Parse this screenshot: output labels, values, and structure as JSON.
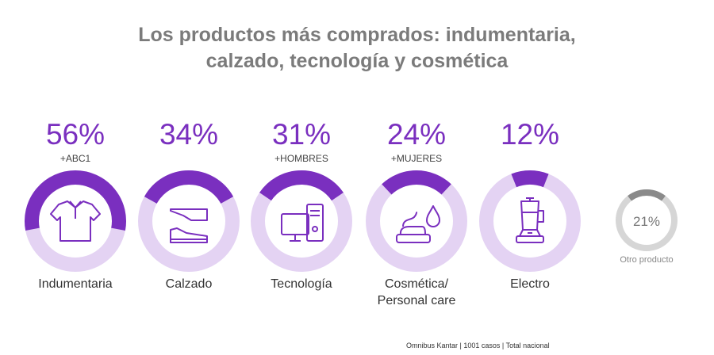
{
  "title": {
    "line1": "Los productos más comprados: indumentaria,",
    "line2": "calzado, tecnología y cosmética"
  },
  "colors": {
    "accent": "#7a2fbf",
    "track": "#e4d3f3",
    "other_accent": "#8a8a8a",
    "other_track": "#d6d6d6"
  },
  "chart_data": {
    "type": "donut",
    "categories": [
      "Indumentaria",
      "Calzado",
      "Tecnología",
      "Cosmética/ Personal care",
      "Electro",
      "Otro producto"
    ],
    "values": [
      56,
      34,
      31,
      24,
      12,
      21
    ],
    "unit": "%"
  },
  "items": [
    {
      "pct": "56%",
      "value": 56,
      "sub": "+ABC1",
      "label": "Indumentaria",
      "icon": "shirt-icon"
    },
    {
      "pct": "34%",
      "value": 34,
      "sub": "",
      "label": "Calzado",
      "icon": "shoes-icon"
    },
    {
      "pct": "31%",
      "value": 31,
      "sub": "+HOMBRES",
      "label": "Tecnología",
      "icon": "computer-icon"
    },
    {
      "pct": "24%",
      "value": 24,
      "sub": "+MUJERES",
      "label": "Cosmética/",
      "label2": "Personal care",
      "icon": "cream-drop-icon"
    },
    {
      "pct": "12%",
      "value": 12,
      "sub": "",
      "label": "Electro",
      "icon": "blender-icon"
    }
  ],
  "other": {
    "pct": "21%",
    "value": 21,
    "label": "Otro producto"
  },
  "source": "Omnibus Kantar | 1001 casos | Total nacional"
}
